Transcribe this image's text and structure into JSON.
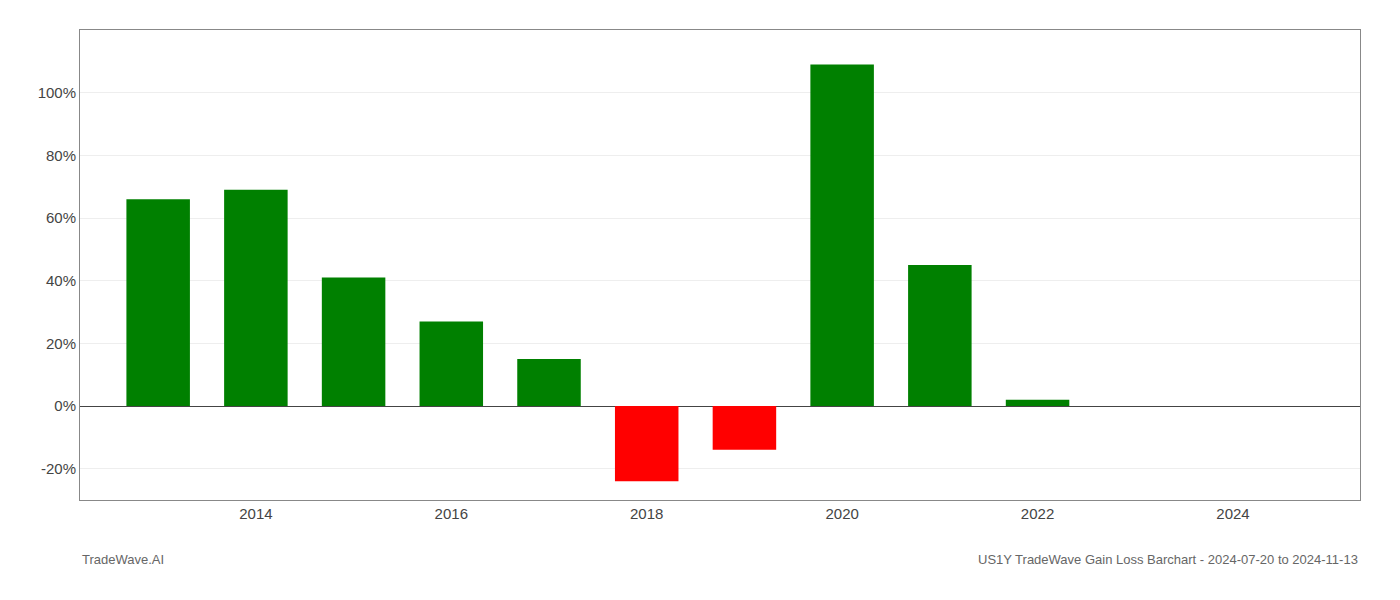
{
  "chart_data": {
    "type": "bar",
    "title": "US1Y TradeWave Gain Loss Barchart - 2024-07-20 to 2024-11-13",
    "annotations": [
      "TradeWave.AI"
    ],
    "x": [
      2013,
      2014,
      2015,
      2016,
      2017,
      2018,
      2019,
      2020,
      2021,
      2022,
      2023,
      2024
    ],
    "values": [
      0.66,
      0.69,
      0.41,
      0.27,
      0.15,
      -0.24,
      -0.14,
      1.09,
      0.45,
      0.02,
      0.0,
      0.0
    ],
    "colors": [
      "#008000",
      "#008000",
      "#008000",
      "#008000",
      "#008000",
      "#ff0000",
      "#ff0000",
      "#008000",
      "#008000",
      "#008000",
      "#008000",
      "#008000"
    ],
    "xlim": [
      2012.2,
      2025.3
    ],
    "xticks": [
      2014,
      2016,
      2018,
      2020,
      2022,
      2024
    ],
    "ylim": [
      -0.3,
      1.2
    ],
    "yticks": [
      {
        "value": -0.2,
        "label": "-20%"
      },
      {
        "value": 0.0,
        "label": "0%"
      },
      {
        "value": 0.2,
        "label": "20%"
      },
      {
        "value": 0.4,
        "label": "40%"
      },
      {
        "value": 0.6,
        "label": "60%"
      },
      {
        "value": 0.8,
        "label": "80%"
      },
      {
        "value": 1.0,
        "label": "100%"
      }
    ],
    "grid": "y"
  }
}
